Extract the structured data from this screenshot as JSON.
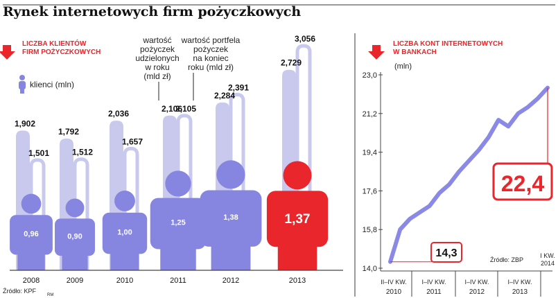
{
  "title": "Rynek internetowych firm pożyczkowych",
  "source_left": "Źródło: KPF",
  "author_mark": "RM",
  "colors": {
    "loans_bar": "#c9c9ee",
    "portfolio_outline": "#c9c9ee",
    "person": "#8686e0",
    "person_highlight": "#e8262b",
    "accent_red": "#e8262b",
    "line": "#8a8ae6",
    "axis": "#444444"
  },
  "chart_data": [
    {
      "type": "bar",
      "title": "LICZBA KLIENTÓW FIRM POŻYCZKOWYCH",
      "title_lines": [
        "LICZBA KLIENTÓW",
        "FIRM POŻYCZKOWYCH"
      ],
      "legend": {
        "clients": "klienci (mln)",
        "loans": [
          "wartość",
          "pożyczek",
          "udzielonych",
          "w roku",
          "(mld zł)"
        ],
        "portfolio": [
          "wartość portfela",
          "pożyczek",
          "na koniec",
          "roku (mld zł)"
        ]
      },
      "categories": [
        "2008",
        "2009",
        "2010",
        "2011",
        "2012",
        "2013"
      ],
      "series": [
        {
          "name": "wartość pożyczek udzielonych w roku (mld zł)",
          "values": [
            1.902,
            1.792,
            2.036,
            2.106,
            2.284,
            2.729
          ],
          "labels": [
            "1,902",
            "1,792",
            "2,036",
            "2,106",
            "2,284",
            "2,729"
          ]
        },
        {
          "name": "wartość portfela pożyczek na koniec roku (mld zł)",
          "values": [
            1.501,
            1.512,
            1.657,
            2.105,
            2.391,
            3.056
          ],
          "labels": [
            "1,501",
            "1,512",
            "1,657",
            "2,105",
            "2,391",
            "3,056"
          ]
        },
        {
          "name": "klienci (mln)",
          "values": [
            0.96,
            0.9,
            1.0,
            1.25,
            1.38,
            1.37
          ],
          "labels": [
            "0,96",
            "0,90",
            "1,00",
            "1,25",
            "1,38",
            "1,37"
          ]
        }
      ],
      "highlight_category": "2013"
    },
    {
      "type": "line",
      "title": "LICZBA KONT INTERNETOWYCH W BANKACH",
      "title_lines": [
        "LICZBA KONT INTERNETOWYCH",
        "W BANKACH"
      ],
      "ylabel": "(mln)",
      "ylim": [
        14.0,
        23.0
      ],
      "yticks": [
        "14,0",
        "15,8",
        "17,6",
        "19,4",
        "21,2",
        "23,0"
      ],
      "ytick_values": [
        14.0,
        15.8,
        17.6,
        19.4,
        21.2,
        23.0
      ],
      "x_group_labels": [
        {
          "period": "II–IV KW.",
          "year": "2010"
        },
        {
          "period": "I–IV KW.",
          "year": "2011"
        },
        {
          "period": "I–IV KW.",
          "year": "2012"
        },
        {
          "period": "I–IV KW.",
          "year": "2013"
        }
      ],
      "x_last_label": [
        "I KW.",
        "2014"
      ],
      "values": [
        14.3,
        15.8,
        16.3,
        16.6,
        16.9,
        17.5,
        17.9,
        18.5,
        19.0,
        19.5,
        20.1,
        20.9,
        20.6,
        21.2,
        21.5,
        21.9,
        22.4
      ],
      "start_annotation": "14,3",
      "end_annotation": "22,4",
      "source": "Źródło: ZBP"
    }
  ]
}
